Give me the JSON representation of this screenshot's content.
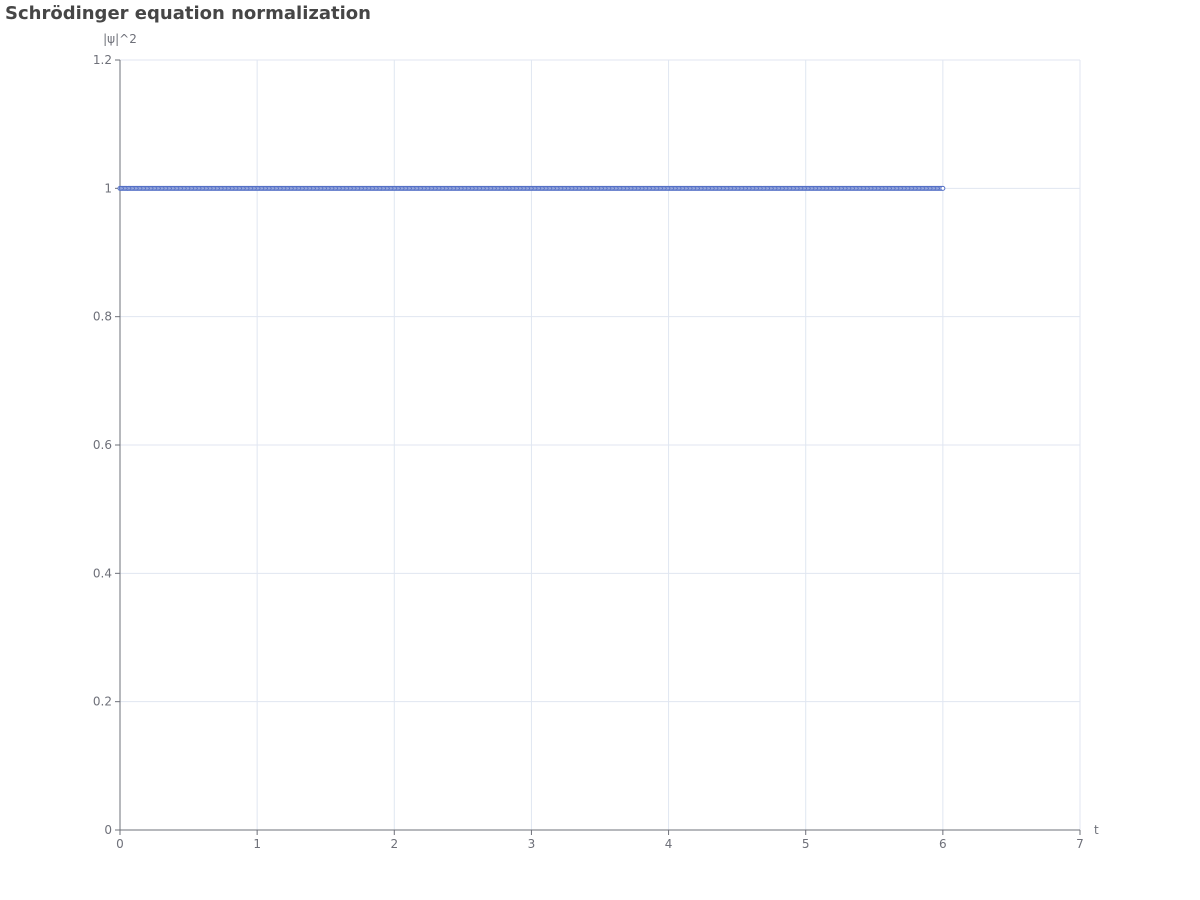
{
  "chart_data": {
    "type": "line",
    "title": "Schrödinger equation normalization",
    "xlabel": "t",
    "ylabel": "|ψ|^2",
    "xlim": [
      0,
      7
    ],
    "ylim": [
      0,
      1.2
    ],
    "x_ticks": [
      "0",
      "1",
      "2",
      "3",
      "4",
      "5",
      "6",
      "7"
    ],
    "y_ticks": [
      "0",
      "0.2",
      "0.4",
      "0.6",
      "0.8",
      "1",
      "1.2"
    ],
    "grid": true,
    "series": [
      {
        "color": "#5470c6",
        "x_start": 0,
        "x_end": 6,
        "x_step": 0.01,
        "y_value": 1
      }
    ]
  }
}
